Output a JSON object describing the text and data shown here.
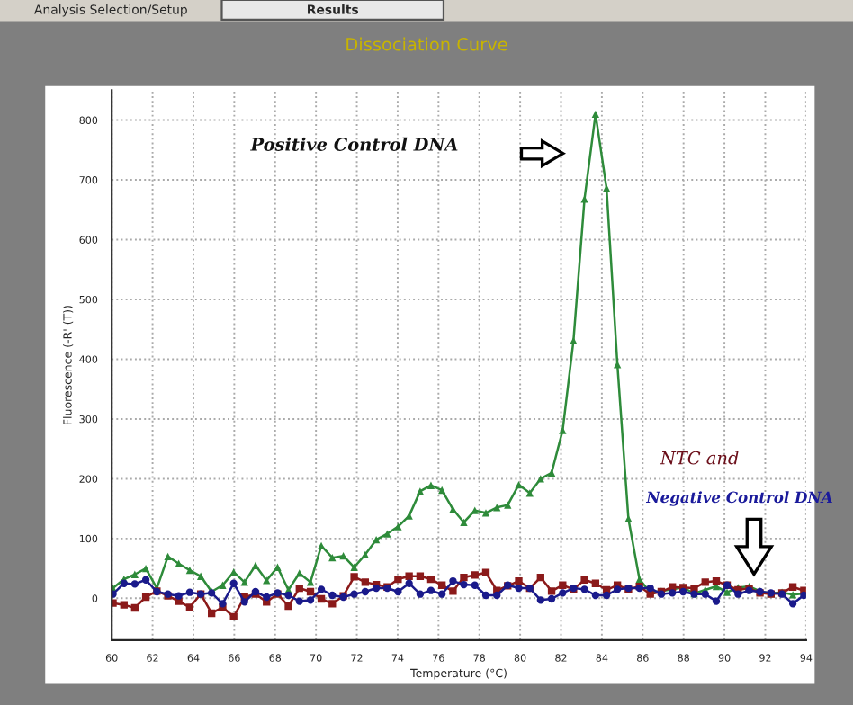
{
  "chart_data": {
    "type": "line",
    "title": "Dissociation Curve",
    "xlabel": "Temperature (°C)",
    "ylabel": "Fluorescence (-R' (T))",
    "annotations": [
      "Analysis Selection/Setup",
      "Results",
      "Positive Control DNA",
      "NTC and",
      "Negative Control DNA"
    ],
    "x": [
      60.06,
      60.6,
      61.13,
      61.67,
      62.21,
      62.75,
      63.28,
      63.82,
      64.36,
      64.89,
      65.43,
      65.97,
      66.5,
      67.04,
      67.58,
      68.12,
      68.65,
      69.19,
      69.73,
      70.26,
      70.8,
      71.34,
      71.87,
      72.41,
      72.95,
      73.49,
      74.02,
      74.56,
      75.1,
      75.63,
      76.17,
      76.71,
      77.24,
      77.78,
      78.32,
      78.86,
      79.39,
      79.93,
      80.47,
      81.0,
      81.54,
      82.08,
      82.61,
      83.15,
      83.69,
      84.23,
      84.76,
      85.3,
      85.84,
      86.37,
      86.91,
      87.45,
      87.98,
      88.52,
      89.06,
      89.6,
      90.13,
      90.67,
      91.21,
      91.74,
      92.28,
      92.82,
      93.35,
      93.89
    ],
    "series": [
      {
        "color": "#2e8b3a",
        "marker": "triangle",
        "values": [
          17,
          32,
          40,
          50,
          17,
          70,
          58,
          47,
          37,
          11,
          22,
          44,
          27,
          55,
          30,
          52,
          14,
          42,
          27,
          88,
          68,
          71,
          52,
          73,
          98,
          108,
          120,
          138,
          179,
          189,
          181,
          149,
          127,
          147,
          143,
          152,
          156,
          190,
          176,
          200,
          210,
          281,
          431,
          668,
          810,
          686,
          391,
          133,
          32,
          10,
          12,
          15,
          18,
          8,
          14,
          20,
          10,
          18,
          20,
          12,
          8,
          10,
          6,
          8
        ]
      },
      {
        "color": "#8b1a1a",
        "marker": "square",
        "values": [
          -8,
          -11,
          -16,
          2,
          12,
          4,
          -5,
          -15,
          7,
          -25,
          -15,
          -31,
          2,
          7,
          -6,
          7,
          -13,
          17,
          11,
          -1,
          -9,
          4,
          36,
          27,
          23,
          19,
          32,
          37,
          37,
          32,
          22,
          12,
          35,
          39,
          43,
          13,
          21,
          29,
          17,
          35,
          12,
          22,
          15,
          31,
          25,
          14,
          22,
          15,
          20,
          7,
          11,
          19,
          18,
          17,
          27,
          29,
          22,
          14,
          17,
          9,
          7,
          9,
          19,
          13
        ]
      },
      {
        "color": "#1a1a8b",
        "marker": "circle",
        "values": [
          7,
          25,
          24,
          31,
          11,
          7,
          4,
          10,
          7,
          9,
          -9,
          25,
          -6,
          11,
          2,
          9,
          5,
          -5,
          -3,
          15,
          5,
          2,
          7,
          11,
          17,
          17,
          11,
          25,
          7,
          13,
          7,
          29,
          23,
          22,
          5,
          5,
          22,
          17,
          17,
          -3,
          -1,
          9,
          17,
          15,
          5,
          5,
          15,
          17,
          17,
          17,
          7,
          9,
          11,
          7,
          7,
          -5,
          22,
          7,
          13,
          11,
          9,
          7,
          -9,
          5
        ]
      }
    ],
    "xlim": [
      60,
      94
    ],
    "ylim": [
      -70,
      850
    ],
    "xticks": [
      60,
      62,
      64,
      66,
      68,
      70,
      72,
      74,
      76,
      78,
      80,
      82,
      84,
      86,
      88,
      90,
      92,
      94
    ],
    "yticks": [
      0,
      100,
      200,
      300,
      400,
      500,
      600,
      700,
      800
    ],
    "grid": true,
    "line_style": "solid"
  }
}
